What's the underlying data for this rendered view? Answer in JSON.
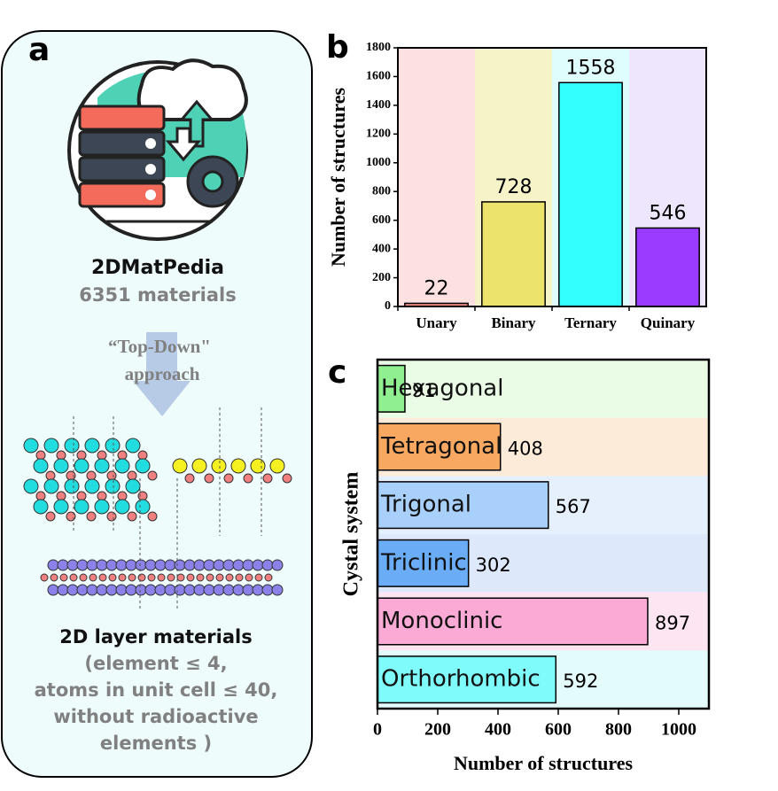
{
  "panel_a": {
    "label": "a",
    "database": "2DMatPedia",
    "count": "6351  materials",
    "approach": [
      "“Top-Down\"",
      "approach"
    ],
    "result": "2D layer materials",
    "criteria": [
      "(element ≤ 4,",
      "atoms in unit cell ≤ 40,",
      "without radioactive",
      "elements )"
    ]
  },
  "chart_data": [
    {
      "type": "bar",
      "label": "b",
      "y_label": "Number of structures",
      "categories": [
        "Unary",
        "Binary",
        "Ternary",
        "Quinary"
      ],
      "values": [
        22,
        728,
        1558,
        546
      ],
      "colors": [
        "#f08c7c",
        "#ece36c",
        "#33ffff",
        "#9a3cff"
      ],
      "band_colors": [
        "#fde0e0",
        "#f7f3c8",
        "#e0fdfd",
        "#ede6fd"
      ],
      "ylim": [
        0,
        1800
      ],
      "yticks": [
        0,
        200,
        400,
        600,
        800,
        1000,
        1200,
        1400,
        1600,
        1800
      ]
    },
    {
      "type": "barh",
      "label": "c",
      "x_label": "Number of structures",
      "y_label": "Cystal system",
      "categories": [
        "Hexagonal",
        "Tetragonal",
        "Trigonal",
        "Triclinic",
        "Monoclinic",
        "Orthorhombic"
      ],
      "values": [
        91,
        408,
        567,
        302,
        897,
        592
      ],
      "colors": [
        "#90f090",
        "#f8a860",
        "#a8d0fb",
        "#6aacf5",
        "#fbaad6",
        "#80fbfb"
      ],
      "band_colors": [
        "#eafbe6",
        "#fdebd9",
        "#e6f0fd",
        "#dde9fb",
        "#fde6f2",
        "#e3fbfb"
      ],
      "xlim": [
        0,
        1100
      ],
      "xticks": [
        0,
        200,
        400,
        600,
        800,
        1000
      ]
    }
  ]
}
